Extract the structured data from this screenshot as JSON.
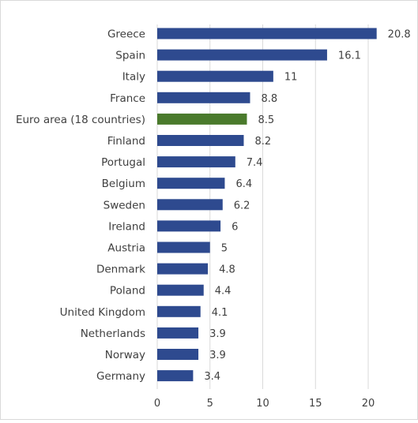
{
  "chart_data": {
    "type": "bar",
    "orientation": "horizontal",
    "title": "",
    "xlabel": "",
    "ylabel": "",
    "xlim": [
      0,
      20
    ],
    "x_ticks": [
      0,
      5,
      10,
      15,
      20
    ],
    "grid": true,
    "legend": "none",
    "categories": [
      "Greece",
      "Spain",
      "Italy",
      "France",
      "Euro area (18 countries)",
      "Finland",
      "Portugal",
      "Belgium",
      "Sweden",
      "Ireland",
      "Austria",
      "Denmark",
      "Poland",
      "United Kingdom",
      "Netherlands",
      "Norway",
      "Germany"
    ],
    "values": [
      20.8,
      16.1,
      11,
      8.8,
      8.5,
      8.2,
      7.4,
      6.4,
      6.2,
      6,
      5,
      4.8,
      4.4,
      4.1,
      3.9,
      3.9,
      3.4
    ],
    "value_labels": [
      "20.8",
      "16.1",
      "11",
      "8.8",
      "8.5",
      "8.2",
      "7.4",
      "6.4",
      "6.2",
      "6",
      "5",
      "4.8",
      "4.4",
      "4.1",
      "3.9",
      "3.9",
      "3.4"
    ],
    "colors": {
      "bar": "#2e4a8f",
      "highlight": "#4a7a2c",
      "grid": "#d9d9d9",
      "text": "#404040"
    },
    "highlight_category": "Euro area (18 countries)"
  }
}
